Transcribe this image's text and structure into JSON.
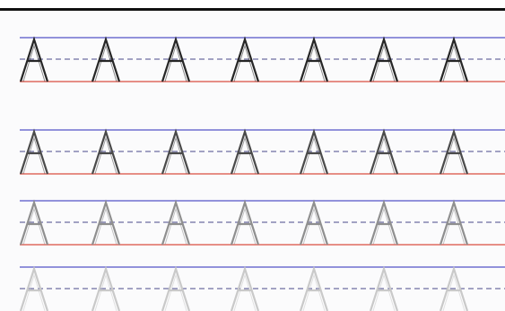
{
  "worksheet": {
    "letter": "A",
    "letters_per_row": 7,
    "rows": [
      {
        "shade": "#262626",
        "opacity": 1.0
      },
      {
        "shade": "#4a4a4a",
        "opacity": 1.0
      },
      {
        "shade": "#8f8f8f",
        "opacity": 1.0
      },
      {
        "shade": "#c9c9c9",
        "opacity": 1.0
      }
    ],
    "colors": {
      "top_line": "#6f6fd0",
      "mid_line": "#4a4a8a",
      "base_line": "#e06a5f",
      "top_bar": "#111111"
    }
  }
}
